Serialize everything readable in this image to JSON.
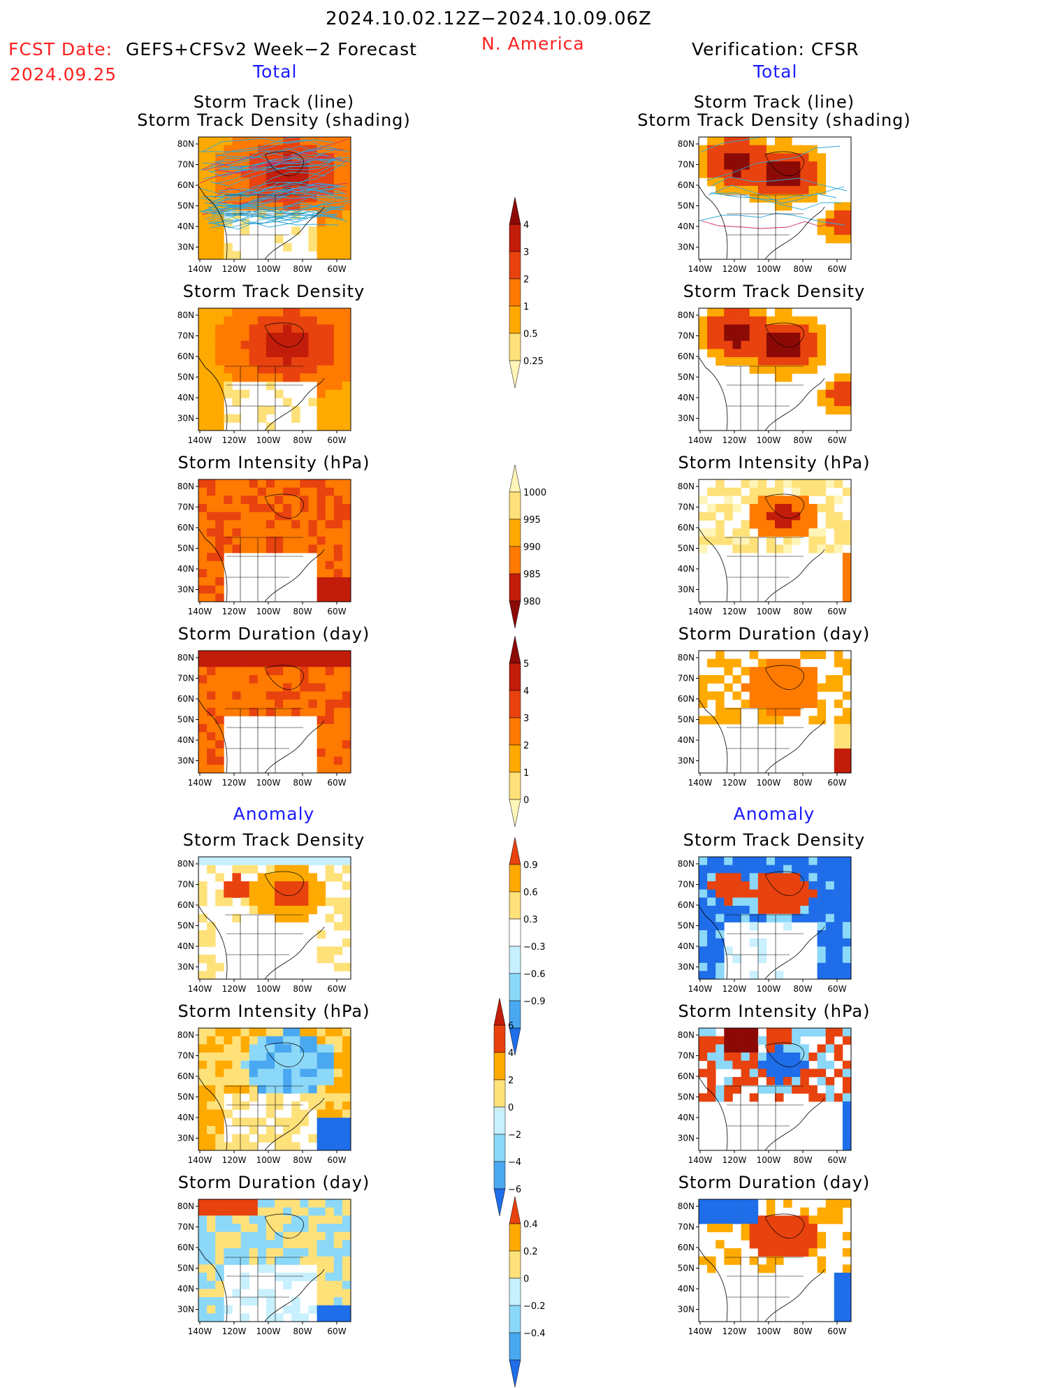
{
  "header": {
    "date_range": "2024.10.02.12Z−2024.10.09.06Z",
    "region": "N. America",
    "fcst_label": "FCST Date:",
    "fcst_model": "GEFS+CFSv2 Week−2 Forecast",
    "fcst_date": "2024.09.25",
    "verification": "Verification: CFSR",
    "left_total": "Total",
    "right_total": "Total",
    "left_anomaly": "Anomaly",
    "right_anomaly": "Anomaly"
  },
  "panel_titles": {
    "track_line": "Storm Track (line)",
    "track_shading": "Storm Track Density (shading)",
    "density": "Storm Track Density",
    "intensity": "Storm Intensity (hPa)",
    "duration": "Storm Duration (day)"
  },
  "axes": {
    "lat_labels": [
      "80N",
      "70N",
      "60N",
      "50N",
      "40N",
      "30N"
    ],
    "lon_labels": [
      "140W",
      "120W",
      "100W",
      "80W",
      "60W"
    ]
  },
  "colorbars": {
    "density": [
      "4",
      "3",
      "2",
      "1",
      "0.5",
      "0.25"
    ],
    "intensity": [
      "1000",
      "995",
      "990",
      "985",
      "980"
    ],
    "duration": [
      "5",
      "4",
      "3",
      "2",
      "1",
      "0"
    ],
    "density_anom": [
      "0.9",
      "0.6",
      "0.3",
      "−0.3",
      "−0.6",
      "−0.9"
    ],
    "intensity_anom": [
      "6",
      "4",
      "2",
      "0",
      "−2",
      "−4",
      "−6"
    ],
    "duration_anom": [
      "0.4",
      "0.2",
      "0",
      "−0.2",
      "−0.4"
    ]
  },
  "colors": {
    "title_red": "#ff2020",
    "title_blue": "#1a1aff",
    "warm": [
      "#fff5b8",
      "#ffe17a",
      "#ffaa00",
      "#ff7a00",
      "#e8420e",
      "#c21c0a",
      "#8c0a06"
    ],
    "cool": [
      "#c8f0ff",
      "#8cd8f8",
      "#4aa8f0",
      "#1f6de8",
      "#0f4fd0"
    ],
    "track_line": "#2fa8d8"
  }
}
